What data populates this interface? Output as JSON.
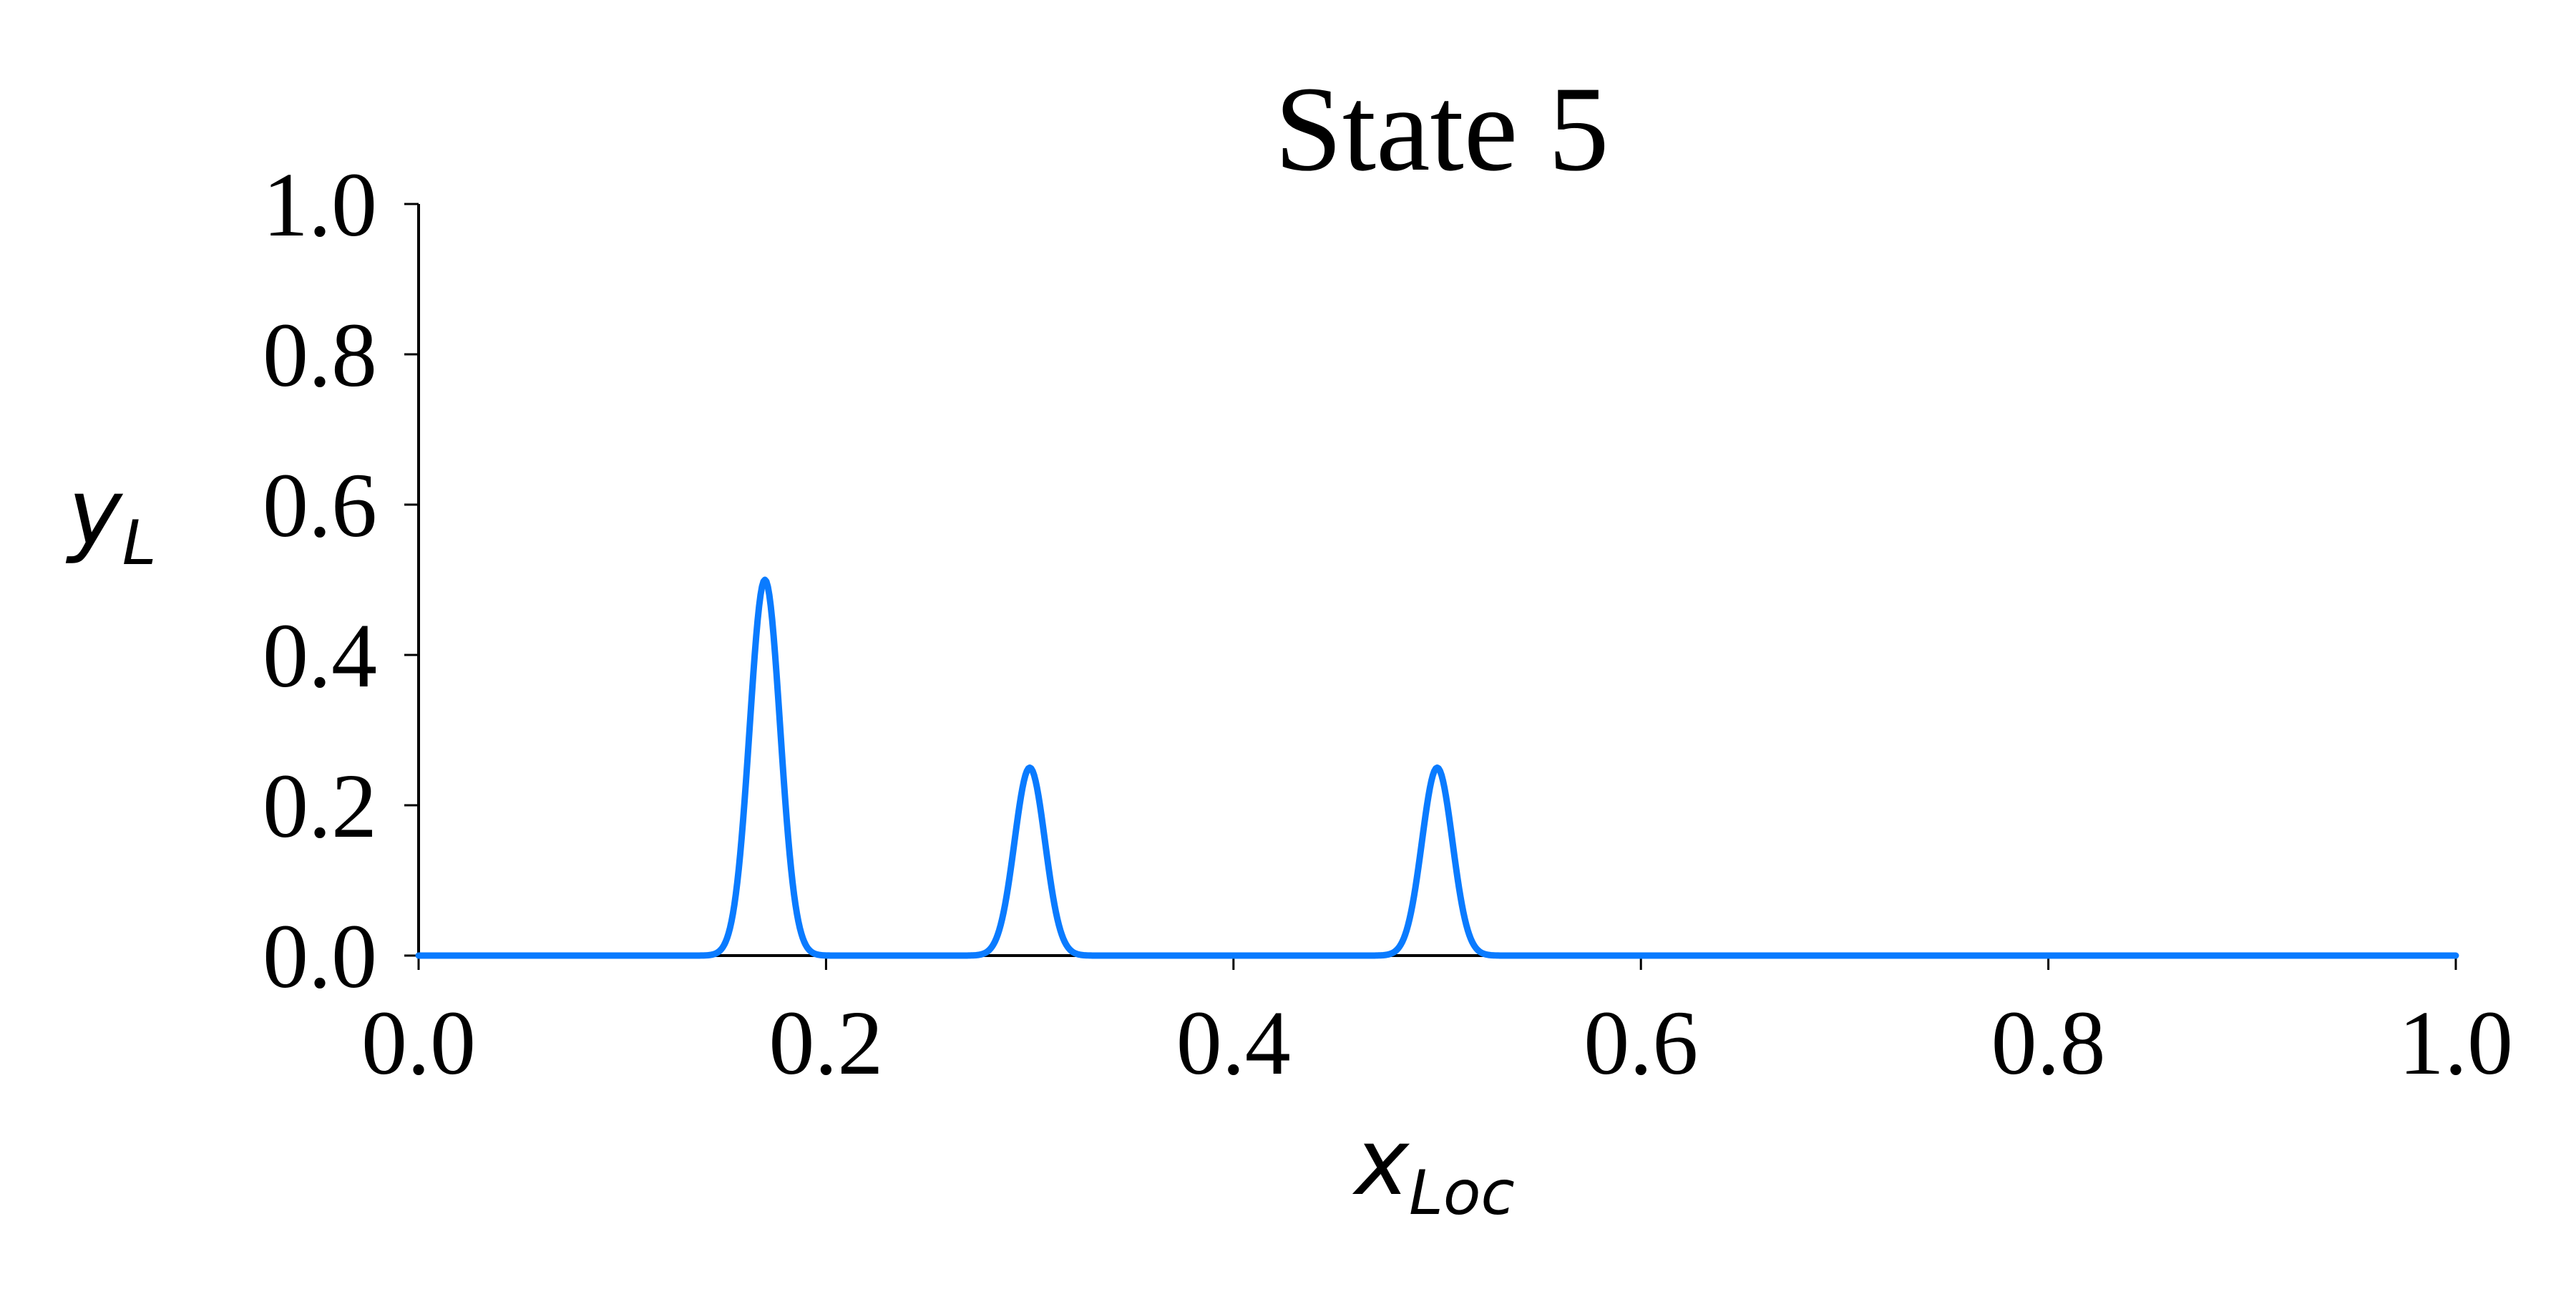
{
  "chart_data": {
    "type": "line",
    "title": "State 5",
    "xlabel_main": "x",
    "xlabel_sub": "Loc",
    "ylabel_main": "y",
    "ylabel_sub": "L",
    "xlim": [
      0.0,
      1.0
    ],
    "ylim": [
      0.0,
      1.0
    ],
    "xticks": [
      0.0,
      0.2,
      0.4,
      0.6,
      0.8,
      1.0
    ],
    "xtick_labels": [
      "0.0",
      "0.2",
      "0.4",
      "0.6",
      "0.8",
      "1.0"
    ],
    "yticks": [
      0.0,
      0.2,
      0.4,
      0.6,
      0.8,
      1.0
    ],
    "ytick_labels": [
      "0.0",
      "0.2",
      "0.4",
      "0.6",
      "0.8",
      "1.0"
    ],
    "grid": false,
    "line_color": "#0A7BFF",
    "peaks": [
      {
        "center": 0.17,
        "amplitude": 0.5,
        "sigma": 0.0075
      },
      {
        "center": 0.3,
        "amplitude": 0.25,
        "sigma": 0.0075
      },
      {
        "center": 0.5,
        "amplitude": 0.25,
        "sigma": 0.0075
      }
    ]
  }
}
